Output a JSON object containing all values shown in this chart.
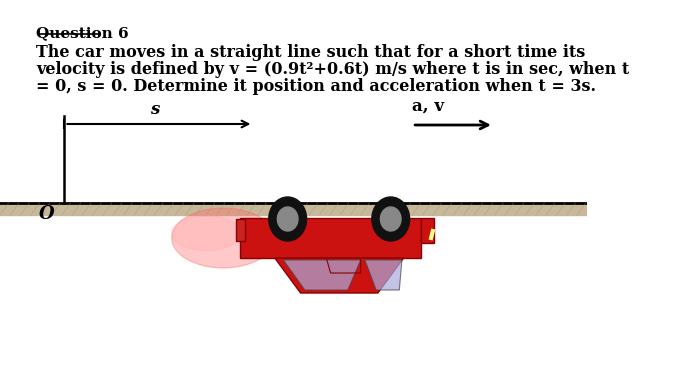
{
  "title": "Question 6",
  "line1": "The car moves in a straight line such that for a short time its",
  "line2": "velocity is defined by v = (0.9t²+0.6t) m/s where t is in sec, when t",
  "line3": "= 0, s = 0. Determine it position and acceleration when t = 3s.",
  "bg_color": "#ffffff",
  "text_color": "#000000",
  "label_s": "s",
  "label_o": "O",
  "label_av": "a, v",
  "road_color": "#c8b89a",
  "road_line_color": "#000000",
  "bracket_color": "#000000",
  "arrow_color": "#000000"
}
